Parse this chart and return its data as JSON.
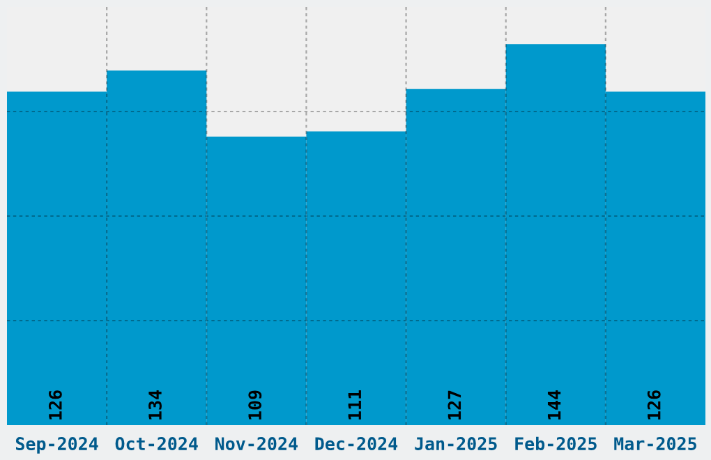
{
  "chart_data": {
    "type": "bar",
    "categories": [
      "Sep-2024",
      "Oct-2024",
      "Nov-2024",
      "Dec-2024",
      "Jan-2025",
      "Feb-2025",
      "Mar-2025"
    ],
    "values": [
      126,
      134,
      109,
      111,
      127,
      144,
      126
    ],
    "color": "#0099cc",
    "data_labels": true,
    "ylim": [
      0,
      158
    ],
    "yticks": [
      {
        "value": 39.5,
        "label": null
      },
      {
        "value": 79,
        "label": null
      },
      {
        "value": 118.5,
        "label": null
      }
    ],
    "tick_labels": "x",
    "grid": true
  }
}
